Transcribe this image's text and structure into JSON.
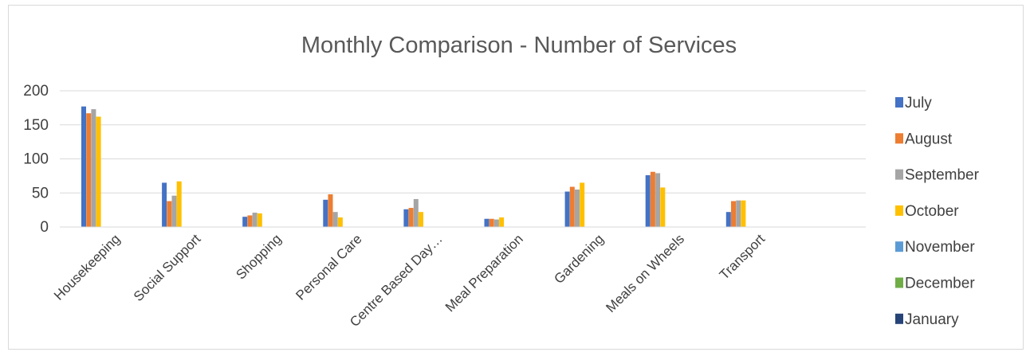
{
  "chart_data": {
    "type": "bar",
    "title": "Monthly Comparison - Number of Services",
    "xlabel": "",
    "ylabel": "",
    "ylim": [
      0,
      200
    ],
    "yticks": [
      0,
      50,
      100,
      150,
      200
    ],
    "grid": true,
    "legend_position": "right",
    "categories": [
      "Housekeeping",
      "Social Support",
      "Shopping",
      "Personal Care",
      "Centre Based Day…",
      "Meal Preparation",
      "Gardening",
      "Meals on Wheels",
      "Transport"
    ],
    "series": [
      {
        "name": "July",
        "color": "#4472c4",
        "values": [
          177,
          65,
          15,
          40,
          26,
          12,
          52,
          76,
          22
        ]
      },
      {
        "name": "August",
        "color": "#ed7d31",
        "values": [
          167,
          38,
          17,
          48,
          28,
          12,
          59,
          81,
          38
        ]
      },
      {
        "name": "September",
        "color": "#a5a5a5",
        "values": [
          173,
          46,
          21,
          22,
          41,
          11,
          55,
          79,
          39
        ]
      },
      {
        "name": "October",
        "color": "#ffc000",
        "values": [
          162,
          67,
          20,
          14,
          22,
          14,
          65,
          58,
          39
        ]
      },
      {
        "name": "November",
        "color": "#5b9bd5",
        "values": [
          0,
          0,
          0,
          0,
          0,
          0,
          0,
          0,
          0
        ]
      },
      {
        "name": "December",
        "color": "#70ad47",
        "values": [
          0,
          0,
          0,
          0,
          0,
          0,
          0,
          0,
          0
        ]
      },
      {
        "name": "January",
        "color": "#264478",
        "values": [
          0,
          0,
          0,
          0,
          0,
          0,
          0,
          0,
          0
        ]
      }
    ]
  }
}
